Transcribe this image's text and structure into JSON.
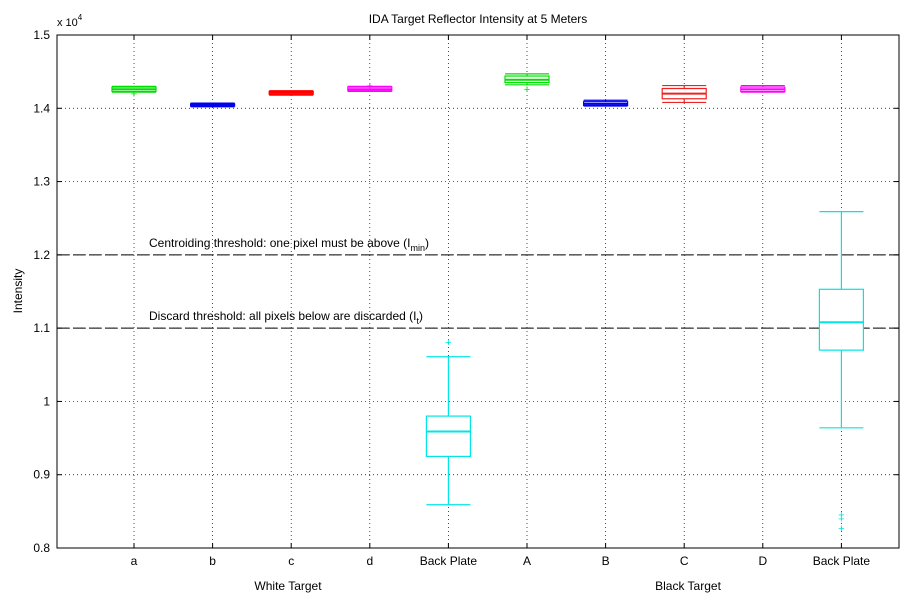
{
  "chart_data": {
    "type": "box",
    "title": "IDA Target Reflector Intensity at 5 Meters",
    "xlabel": "",
    "ylabel": "Intensity",
    "ylim": [
      8000,
      15000
    ],
    "yscale_label": {
      "base": "x 10",
      "exp": "4"
    },
    "ytick_values": [
      8000,
      9000,
      10000,
      11000,
      12000,
      13000,
      14000,
      15000
    ],
    "ytick_labels": [
      "0.8",
      "0.9",
      "1",
      "1.1",
      "1.2",
      "1.3",
      "1.4",
      "1.5"
    ],
    "grid": true,
    "groups": [
      {
        "label": "White Target",
        "span": [
          0,
          4
        ]
      },
      {
        "label": "Black Target",
        "span": [
          5,
          9
        ]
      }
    ],
    "categories": [
      "a",
      "b",
      "c",
      "d",
      "Back Plate",
      "A",
      "B",
      "C",
      "D",
      "Back Plate"
    ],
    "boxes": [
      {
        "color": "#00dd00",
        "whisker_low": 14220,
        "q1": 14230,
        "median": 14260,
        "q3": 14290,
        "whisker_high": 14300,
        "outliers": [
          14200
        ]
      },
      {
        "color": "#0000ee",
        "whisker_low": 14020,
        "q1": 14030,
        "median": 14040,
        "q3": 14060,
        "whisker_high": 14070,
        "outliers": []
      },
      {
        "color": "#ff0000",
        "whisker_low": 14180,
        "q1": 14190,
        "median": 14210,
        "q3": 14230,
        "whisker_high": 14240,
        "outliers": []
      },
      {
        "color": "#ff00ff",
        "whisker_low": 14230,
        "q1": 14240,
        "median": 14260,
        "q3": 14290,
        "whisker_high": 14300,
        "outliers": [
          14310
        ]
      },
      {
        "color": "#00e5e5",
        "whisker_low": 8590,
        "q1": 9250,
        "median": 9590,
        "q3": 9800,
        "whisker_high": 10610,
        "outliers": [
          10810
        ]
      },
      {
        "color": "#00dd00",
        "whisker_low": 14320,
        "q1": 14350,
        "median": 14390,
        "q3": 14440,
        "whisker_high": 14470,
        "outliers": [
          14260
        ]
      },
      {
        "color": "#0000ee",
        "whisker_low": 14030,
        "q1": 14040,
        "median": 14060,
        "q3": 14090,
        "whisker_high": 14110,
        "outliers": []
      },
      {
        "color": "#ee2222",
        "whisker_low": 14080,
        "q1": 14130,
        "median": 14200,
        "q3": 14270,
        "whisker_high": 14310,
        "outliers": []
      },
      {
        "color": "#ff00ff",
        "whisker_low": 14220,
        "q1": 14230,
        "median": 14260,
        "q3": 14290,
        "whisker_high": 14310,
        "outliers": []
      },
      {
        "color": "#00e5e5",
        "whisker_low": 9640,
        "q1": 10700,
        "median": 11080,
        "q3": 11530,
        "whisker_high": 12590,
        "outliers": [
          8460,
          8400,
          8270
        ]
      }
    ],
    "reference_lines": [
      {
        "y": 12000,
        "style": "dashed",
        "text": "Centroiding threshold: one pixel must be above (I",
        "sub": "min",
        "suffix": ")"
      },
      {
        "y": 11000,
        "style": "dashed",
        "text": "Discard threshold: all pixels below are discarded (I",
        "sub": "t",
        "suffix": ")"
      }
    ]
  }
}
